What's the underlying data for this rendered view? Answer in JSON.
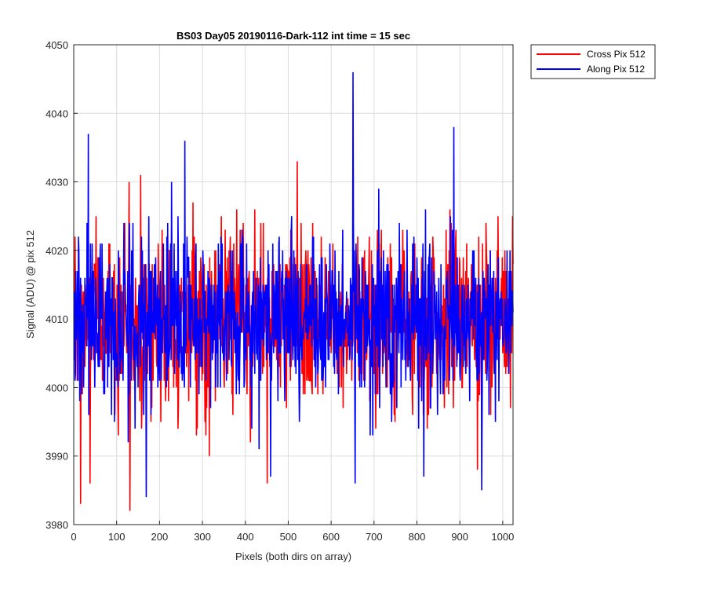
{
  "chart_data": {
    "type": "line",
    "title": "BS03 Day05 20190116-Dark-112 int time = 15 sec",
    "xlabel": "Pixels (both dirs on array)",
    "ylabel": "Signal (ADU) @ pix 512",
    "xlim": [
      0,
      1024
    ],
    "ylim": [
      3980,
      4050
    ],
    "xticks": [
      0,
      100,
      200,
      300,
      400,
      500,
      600,
      700,
      800,
      900,
      1000
    ],
    "yticks": [
      3980,
      3990,
      4000,
      4010,
      4020,
      4030,
      4040,
      4050
    ],
    "grid": true,
    "legend_position": "outside-top-right",
    "series": [
      {
        "name": "Cross Pix 512",
        "color": "#ff0000",
        "baseline": 4010,
        "n_points": 1024,
        "approx_range": [
          3982,
          4033
        ],
        "extremes": [
          {
            "x": 15,
            "y": 3983
          },
          {
            "x": 37,
            "y": 3986
          },
          {
            "x": 130,
            "y": 3982
          },
          {
            "x": 450,
            "y": 3986
          },
          {
            "x": 520,
            "y": 4033
          },
          {
            "x": 128,
            "y": 4030
          },
          {
            "x": 155,
            "y": 4031
          },
          {
            "x": 940,
            "y": 3988
          },
          {
            "x": 1022,
            "y": 4025
          }
        ]
      },
      {
        "name": "Along Pix 512",
        "color": "#0000ff",
        "baseline": 4010,
        "n_points": 1024,
        "approx_range": [
          3984,
          4046
        ],
        "extremes": [
          {
            "x": 33,
            "y": 4037
          },
          {
            "x": 258,
            "y": 4036
          },
          {
            "x": 650,
            "y": 4046
          },
          {
            "x": 885,
            "y": 4038
          },
          {
            "x": 168,
            "y": 3984
          },
          {
            "x": 458,
            "y": 3987
          },
          {
            "x": 655,
            "y": 3986
          },
          {
            "x": 950,
            "y": 3985
          },
          {
            "x": 815,
            "y": 3987
          }
        ]
      }
    ]
  }
}
